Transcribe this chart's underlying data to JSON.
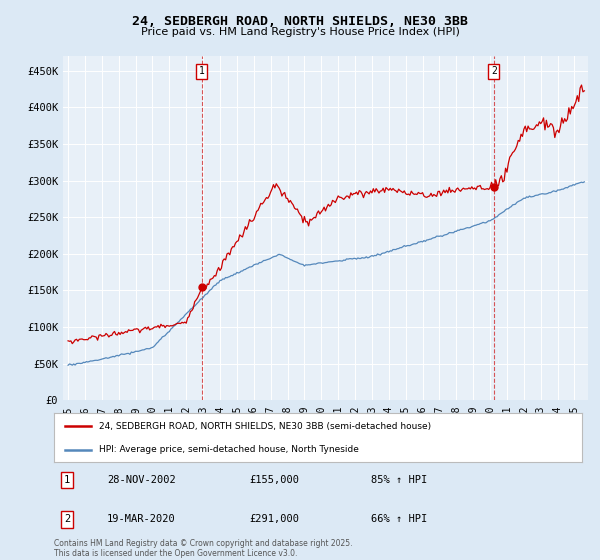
{
  "title1": "24, SEDBERGH ROAD, NORTH SHIELDS, NE30 3BB",
  "title2": "Price paid vs. HM Land Registry's House Price Index (HPI)",
  "ylim": [
    0,
    470000
  ],
  "yticks": [
    0,
    50000,
    100000,
    150000,
    200000,
    250000,
    300000,
    350000,
    400000,
    450000
  ],
  "ytick_labels": [
    "£0",
    "£50K",
    "£100K",
    "£150K",
    "£200K",
    "£250K",
    "£300K",
    "£350K",
    "£400K",
    "£450K"
  ],
  "xlim_start": 1994.7,
  "xlim_end": 2025.8,
  "red_color": "#cc0000",
  "blue_color": "#5588bb",
  "marker1_x": 2002.91,
  "marker1_y": 155000,
  "marker2_x": 2020.22,
  "marker2_y": 291000,
  "legend_line1": "24, SEDBERGH ROAD, NORTH SHIELDS, NE30 3BB (semi-detached house)",
  "legend_line2": "HPI: Average price, semi-detached house, North Tyneside",
  "table_rows": [
    {
      "num": "1",
      "date": "28-NOV-2002",
      "price": "£155,000",
      "hpi": "85% ↑ HPI"
    },
    {
      "num": "2",
      "date": "19-MAR-2020",
      "price": "£291,000",
      "hpi": "66% ↑ HPI"
    }
  ],
  "footnote": "Contains HM Land Registry data © Crown copyright and database right 2025.\nThis data is licensed under the Open Government Licence v3.0.",
  "bg_color": "#dce9f5",
  "plot_bg": "#e8f0f8"
}
